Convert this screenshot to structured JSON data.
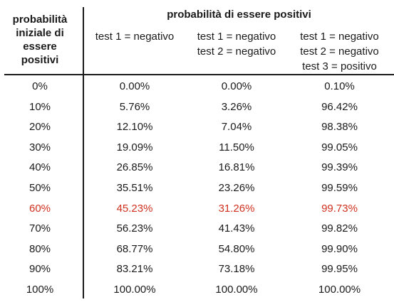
{
  "header": {
    "row_header": [
      "probabilità",
      "iniziale di",
      "essere",
      "positivi"
    ],
    "group_title": "probabilità di essere positivi",
    "columns": [
      [
        "test 1 = negativo"
      ],
      [
        "test 1 = negativo",
        "test 2 = negativo"
      ],
      [
        "test 1 = negativo",
        "test 2 = negativo",
        "test 3 = positivo"
      ]
    ]
  },
  "highlight_color": "#d0301f",
  "rows": [
    {
      "prior": "0%",
      "v1": "0.00%",
      "v2": "0.00%",
      "v3": "0.10%"
    },
    {
      "prior": "10%",
      "v1": "5.76%",
      "v2": "3.26%",
      "v3": "96.42%"
    },
    {
      "prior": "20%",
      "v1": "12.10%",
      "v2": "7.04%",
      "v3": "98.38%"
    },
    {
      "prior": "30%",
      "v1": "19.09%",
      "v2": "11.50%",
      "v3": "99.05%"
    },
    {
      "prior": "40%",
      "v1": "26.85%",
      "v2": "16.81%",
      "v3": "99.39%"
    },
    {
      "prior": "50%",
      "v1": "35.51%",
      "v2": "23.26%",
      "v3": "99.59%"
    },
    {
      "prior": "60%",
      "v1": "45.23%",
      "v2": "31.26%",
      "v3": "99.73%",
      "highlight": true
    },
    {
      "prior": "70%",
      "v1": "56.23%",
      "v2": "41.43%",
      "v3": "99.82%"
    },
    {
      "prior": "80%",
      "v1": "68.77%",
      "v2": "54.80%",
      "v3": "99.90%"
    },
    {
      "prior": "90%",
      "v1": "83.21%",
      "v2": "73.18%",
      "v3": "99.95%"
    },
    {
      "prior": "100%",
      "v1": "100.00%",
      "v2": "100.00%",
      "v3": "100.00%"
    }
  ]
}
